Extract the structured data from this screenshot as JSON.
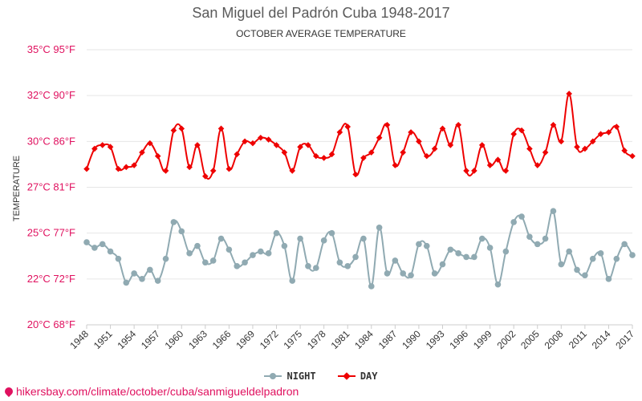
{
  "chart_data": {
    "type": "line",
    "title": "San Miguel del Padrón Cuba 1948-2017",
    "subtitle": "OCTOBER AVERAGE TEMPERATURE",
    "ylabel": "TEMPERATURE",
    "ylim": [
      20,
      35
    ],
    "yticks": [
      {
        "value": 20,
        "label": "20°C 68°F"
      },
      {
        "value": 22.5,
        "label": "22°C 72°F"
      },
      {
        "value": 25,
        "label": "25°C 77°F"
      },
      {
        "value": 27.5,
        "label": "27°C 81°F"
      },
      {
        "value": 30,
        "label": "30°C 86°F"
      },
      {
        "value": 32.5,
        "label": "32°C 90°F"
      },
      {
        "value": 35,
        "label": "35°C 95°F"
      }
    ],
    "xticks": [
      "1948",
      "1951",
      "1954",
      "1957",
      "1960",
      "1963",
      "1966",
      "1969",
      "1972",
      "1975",
      "1978",
      "1981",
      "1984",
      "1987",
      "1990",
      "1993",
      "1996",
      "1999",
      "2002",
      "2005",
      "2008",
      "2011",
      "2014",
      "2017"
    ],
    "x": [
      1948,
      1949,
      1950,
      1951,
      1952,
      1953,
      1954,
      1955,
      1956,
      1957,
      1958,
      1959,
      1960,
      1961,
      1962,
      1963,
      1964,
      1965,
      1966,
      1967,
      1968,
      1969,
      1970,
      1971,
      1972,
      1973,
      1974,
      1975,
      1976,
      1977,
      1978,
      1979,
      1980,
      1981,
      1982,
      1983,
      1984,
      1985,
      1986,
      1987,
      1988,
      1989,
      1990,
      1991,
      1992,
      1993,
      1994,
      1995,
      1996,
      1997,
      1998,
      1999,
      2000,
      2001,
      2002,
      2003,
      2004,
      2005,
      2006,
      2007,
      2008,
      2009,
      2010,
      2011,
      2012,
      2013,
      2014,
      2015,
      2016,
      2017
    ],
    "series": [
      {
        "name": "NIGHT",
        "color": "#90aab2",
        "marker": "circle",
        "values": [
          24.5,
          24.2,
          24.4,
          24.0,
          23.6,
          22.3,
          22.8,
          22.5,
          23.0,
          22.4,
          23.6,
          25.6,
          25.1,
          23.9,
          24.3,
          23.4,
          23.5,
          24.7,
          24.1,
          23.2,
          23.4,
          23.8,
          24.0,
          23.9,
          25.0,
          24.3,
          22.4,
          24.7,
          23.2,
          23.1,
          24.6,
          25.0,
          23.4,
          23.2,
          23.7,
          24.7,
          22.1,
          25.3,
          22.8,
          23.5,
          22.8,
          22.7,
          24.4,
          24.3,
          22.8,
          23.3,
          24.1,
          23.9,
          23.7,
          23.7,
          24.7,
          24.2,
          22.2,
          24.0,
          25.6,
          25.9,
          24.8,
          24.4,
          24.7,
          26.2,
          23.3,
          24.0,
          23.0,
          22.7,
          23.6,
          23.9,
          22.5,
          23.6,
          24.4,
          23.8
        ]
      },
      {
        "name": "DAY",
        "color": "#ee0000",
        "marker": "diamond",
        "values": [
          28.5,
          29.6,
          29.8,
          29.7,
          28.5,
          28.6,
          28.7,
          29.4,
          29.9,
          29.2,
          28.4,
          30.6,
          30.7,
          28.6,
          29.8,
          28.1,
          28.4,
          30.7,
          28.5,
          29.3,
          30.0,
          29.9,
          30.2,
          30.1,
          29.8,
          29.4,
          28.4,
          29.7,
          29.8,
          29.2,
          29.1,
          29.3,
          30.5,
          30.8,
          28.2,
          29.1,
          29.4,
          30.2,
          30.9,
          28.7,
          29.4,
          30.5,
          30.0,
          29.2,
          29.6,
          30.7,
          29.8,
          30.9,
          28.4,
          28.4,
          29.8,
          28.7,
          29.0,
          28.4,
          30.4,
          30.6,
          29.6,
          28.7,
          29.4,
          30.9,
          30.0,
          32.6,
          29.7,
          29.6,
          30.0,
          30.4,
          30.5,
          30.8,
          29.5,
          29.2
        ]
      }
    ],
    "legend_position": "bottom",
    "grid": true
  },
  "source": {
    "text": "hikersbay.com/climate/october/cuba/sanmigueldelpadron"
  }
}
